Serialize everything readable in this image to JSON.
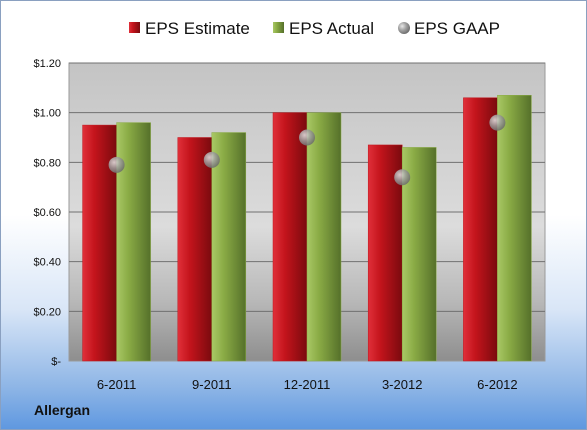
{
  "chart_data": {
    "type": "bar",
    "categories": [
      "6-2011",
      "9-2011",
      "12-2011",
      "3-2012",
      "6-2012"
    ],
    "series": [
      {
        "name": "EPS Estimate",
        "kind": "bar",
        "color": "#c0141c",
        "values": [
          0.95,
          0.9,
          1.0,
          0.87,
          1.06
        ]
      },
      {
        "name": "EPS Actual",
        "kind": "bar",
        "color": "#8aab45",
        "values": [
          0.96,
          0.92,
          1.0,
          0.86,
          1.07
        ]
      },
      {
        "name": "EPS GAAP",
        "kind": "marker",
        "color": "#9a9a9a",
        "values": [
          0.79,
          0.81,
          0.9,
          0.74,
          0.96
        ]
      }
    ],
    "ylim": [
      0,
      1.2
    ],
    "yticks": [
      0,
      0.2,
      0.4,
      0.6,
      0.8,
      1.0,
      1.2
    ],
    "ytick_labels": [
      "$-",
      "$0.20",
      "$0.40",
      "$0.60",
      "$0.80",
      "$1.00",
      "$1.20"
    ],
    "grid": true,
    "legend": "top"
  },
  "company": "Allergan"
}
